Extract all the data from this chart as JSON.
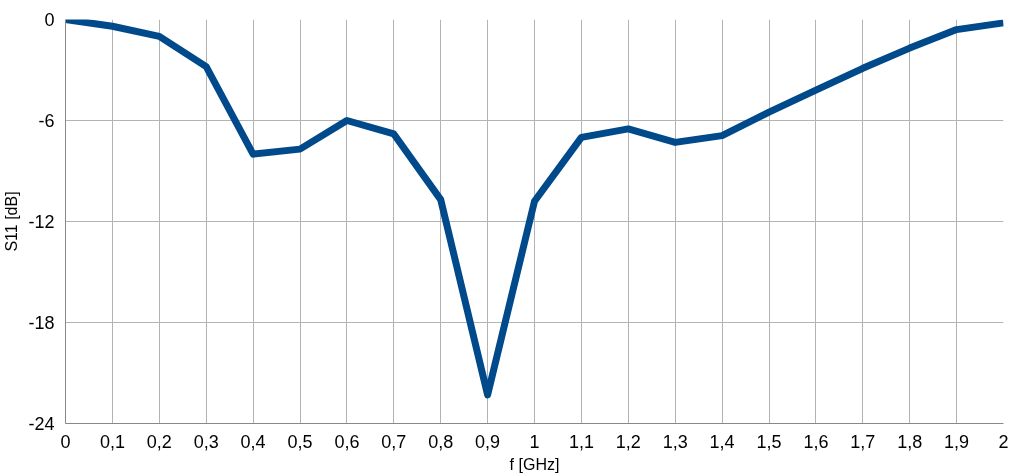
{
  "chart_data": {
    "type": "line",
    "xlabel": "f [GHz]",
    "ylabel": "S11 [dB]",
    "x": [
      0,
      0.1,
      0.2,
      0.3,
      0.4,
      0.5,
      0.6,
      0.7,
      0.8,
      0.9,
      1.0,
      1.1,
      1.2,
      1.3,
      1.4,
      1.5,
      1.6,
      1.7,
      1.8,
      1.9,
      2.0
    ],
    "series": [
      {
        "color": "#004a8c",
        "values": [
          0,
          -0.4,
          -1.0,
          -2.8,
          -8.0,
          -7.7,
          -6.0,
          -6.8,
          -10.7,
          -22.3,
          -10.8,
          -7.0,
          -6.5,
          -7.3,
          -6.9,
          -5.5,
          -4.2,
          -2.9,
          -1.7,
          -0.6,
          -0.2
        ]
      }
    ],
    "xlim": [
      0,
      2
    ],
    "ylim": [
      -24,
      0
    ],
    "xticks": [
      0,
      {
        "value": 0.1,
        "label": "0,1"
      },
      {
        "value": 0.2,
        "label": "0,2"
      },
      {
        "value": 0.3,
        "label": "0,3"
      },
      {
        "value": 0.4,
        "label": "0,4"
      },
      {
        "value": 0.5,
        "label": "0,5"
      },
      {
        "value": 0.6,
        "label": "0,6"
      },
      {
        "value": 0.7,
        "label": "0,7"
      },
      {
        "value": 0.8,
        "label": "0,8"
      },
      {
        "value": 0.9,
        "label": "0,9"
      },
      1,
      {
        "value": 1.1,
        "label": "1,1"
      },
      {
        "value": 1.2,
        "label": "1,2"
      },
      {
        "value": 1.3,
        "label": "1,3"
      },
      {
        "value": 1.4,
        "label": "1,4"
      },
      {
        "value": 1.5,
        "label": "1,5"
      },
      {
        "value": 1.6,
        "label": "1,6"
      },
      {
        "value": 1.7,
        "label": "1,7"
      },
      {
        "value": 1.8,
        "label": "1,8"
      },
      {
        "value": 1.9,
        "label": "1,9"
      },
      2
    ],
    "yticks": [
      -24,
      -18,
      -12,
      -6,
      0
    ],
    "grid": true,
    "marker": "none",
    "line_style": "solid"
  }
}
